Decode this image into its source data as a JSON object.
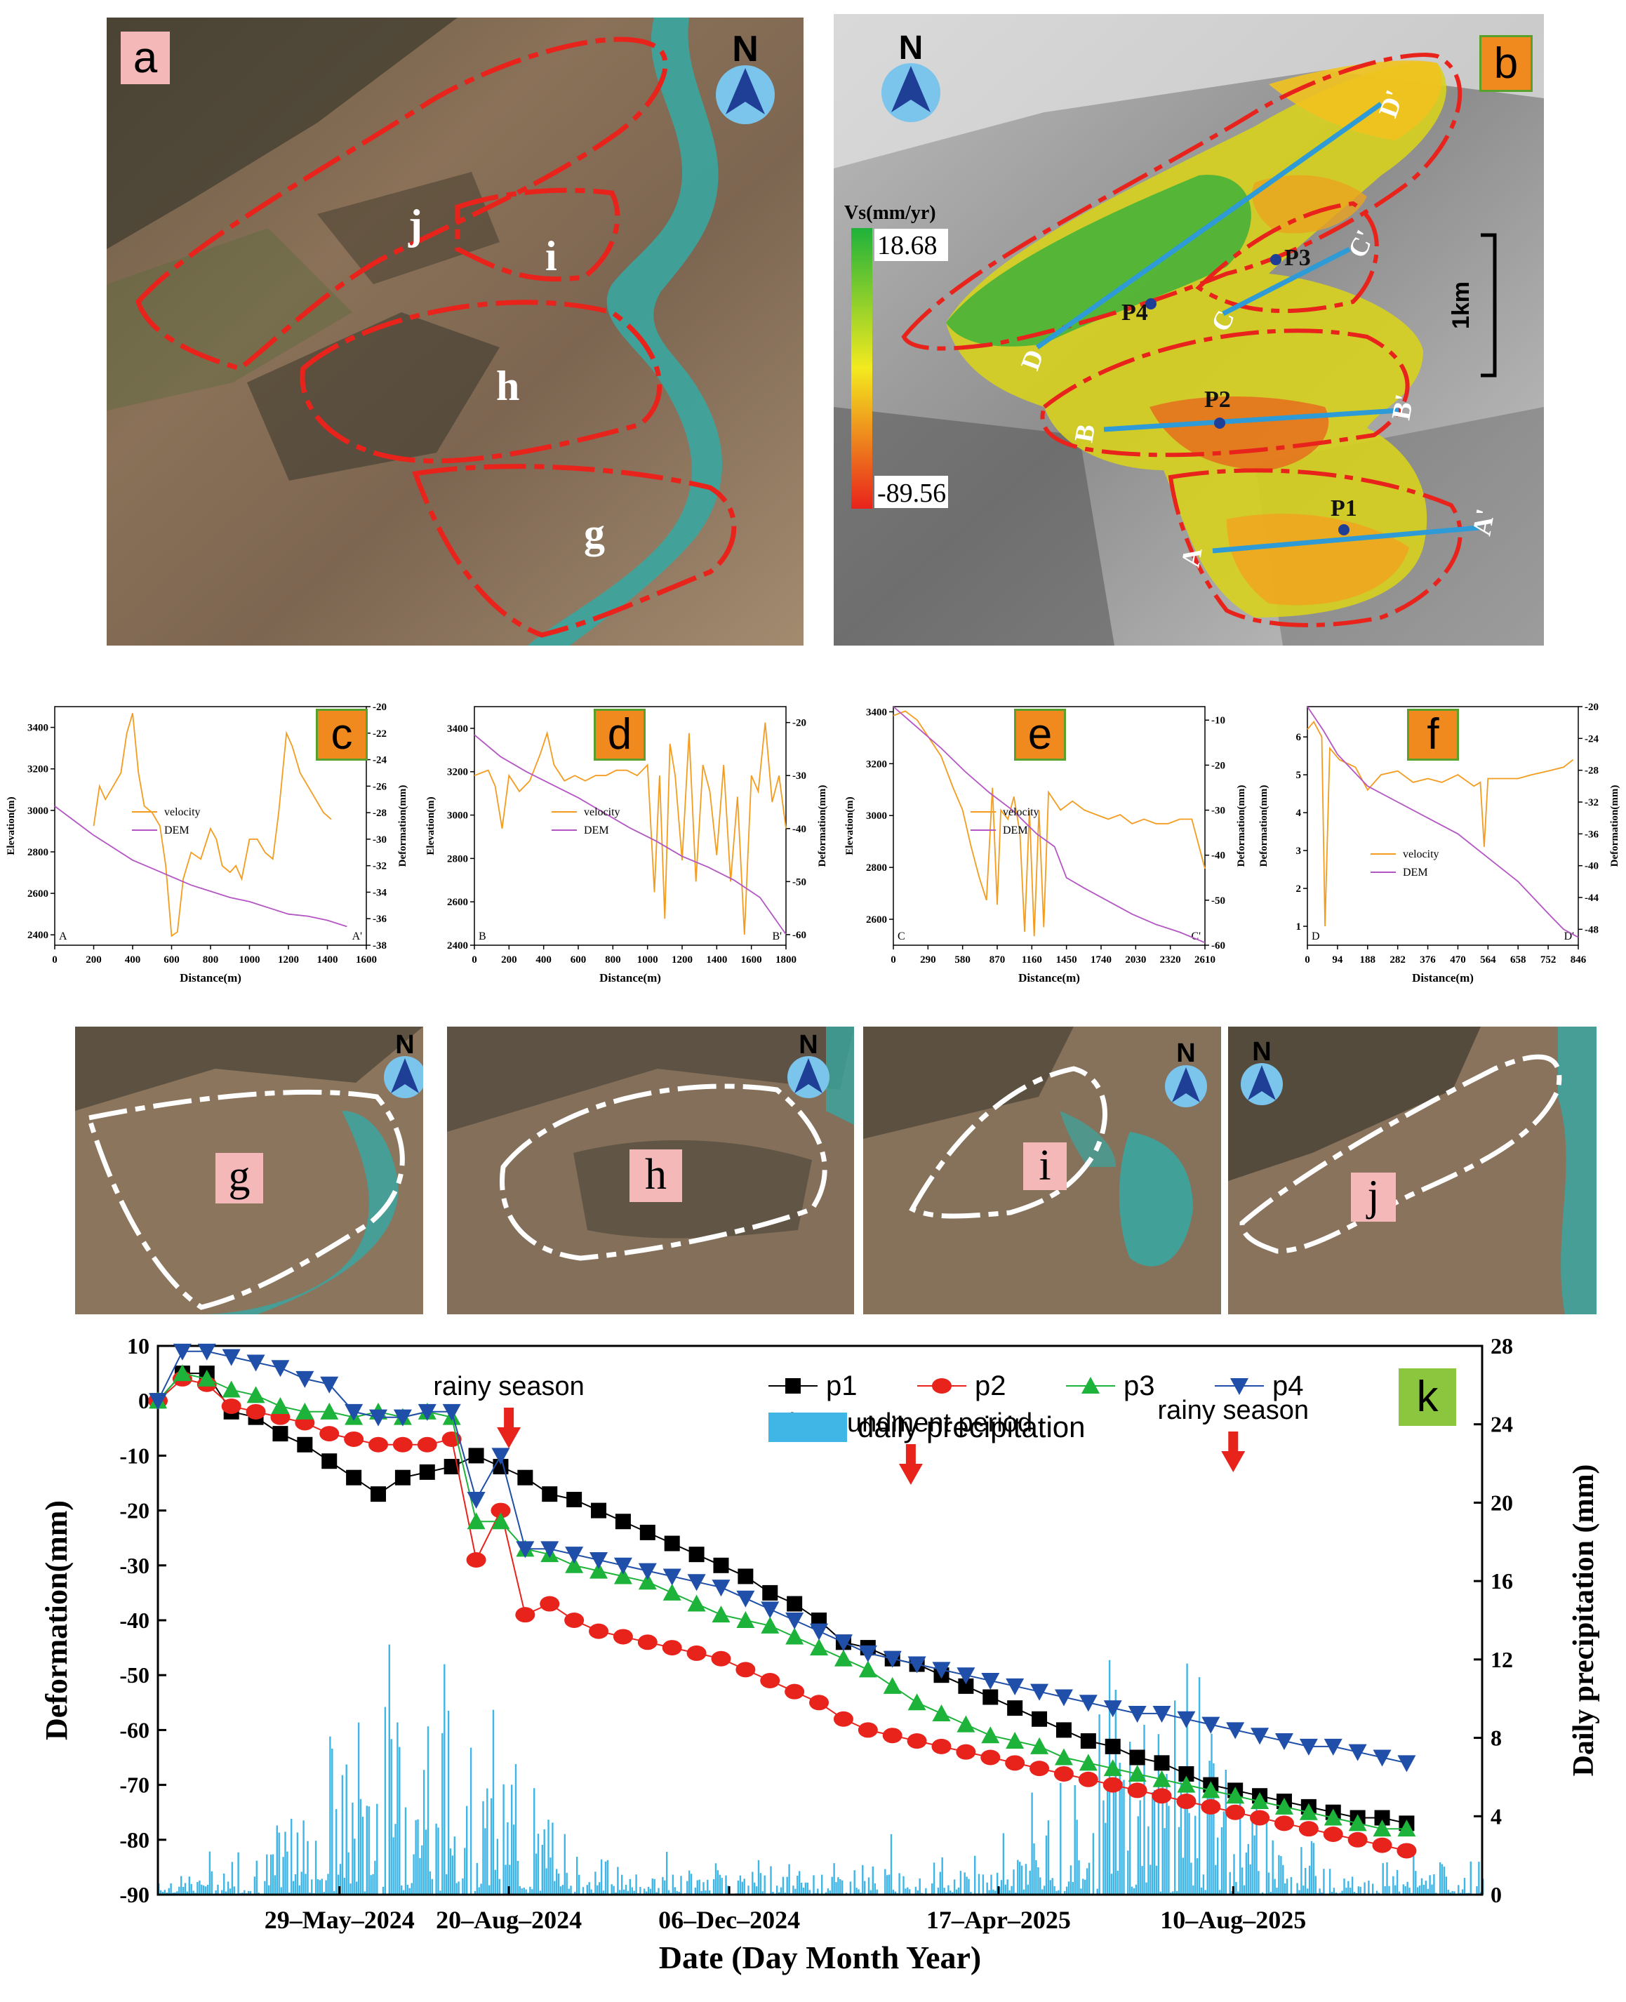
{
  "panels": {
    "a": {
      "label": "a",
      "north": "N",
      "zones": [
        {
          "key": "g",
          "label": "g"
        },
        {
          "key": "h",
          "label": "h"
        },
        {
          "key": "i",
          "label": "i"
        },
        {
          "key": "j",
          "label": "j"
        }
      ]
    },
    "b": {
      "label": "b",
      "north": "N",
      "colorbar": {
        "title": "Vs(mm/yr)",
        "max": "18.68",
        "min": "-89.56"
      },
      "scalebar": "1km",
      "points": [
        {
          "label": "P1"
        },
        {
          "label": "P2"
        },
        {
          "label": "P3"
        },
        {
          "label": "P4"
        }
      ],
      "profiles": [
        {
          "start": "A",
          "end": "A'"
        },
        {
          "start": "B",
          "end": "B'"
        },
        {
          "start": "C",
          "end": "C'"
        },
        {
          "start": "D",
          "end": "D'"
        }
      ],
      "colors": {
        "max": "#1fb23a",
        "mid": "#f3ea1f",
        "min": "#e8231c",
        "profile": "#2e9bd6",
        "outline": "#e8231c"
      }
    },
    "photos": [
      {
        "label": "g",
        "north": "N"
      },
      {
        "label": "h",
        "north": "N"
      },
      {
        "label": "i",
        "north": "N"
      },
      {
        "label": "j",
        "north": "N"
      }
    ]
  },
  "chart_data": [
    {
      "panel": "c",
      "type": "line",
      "xlabel": "Distance(m)",
      "ylabel": "Elevation(m)",
      "y2label": "Deformation(mm)",
      "legend": [
        "velocity",
        "DEM"
      ],
      "start_label": "A",
      "end_label": "A'",
      "xlim": [
        0,
        1600
      ],
      "xticks": [
        0,
        200,
        400,
        600,
        800,
        1000,
        1200,
        1400,
        1600
      ],
      "ylim": [
        2350,
        3500
      ],
      "yticks": [
        2400,
        2600,
        2800,
        3000,
        3200,
        3400
      ],
      "y2lim": [
        -38,
        -20
      ],
      "y2ticks": [
        -38,
        -36,
        -34,
        -32,
        -30,
        -28,
        -26,
        -24,
        -22,
        -20
      ],
      "series": [
        {
          "name": "velocity",
          "axis": "y2",
          "x": [
            200,
            230,
            260,
            300,
            340,
            370,
            400,
            430,
            460,
            500,
            540,
            570,
            600,
            630,
            660,
            700,
            750,
            800,
            830,
            860,
            900,
            930,
            960,
            1000,
            1040,
            1080,
            1120,
            1150,
            1190,
            1220,
            1260,
            1300,
            1340,
            1380,
            1420
          ],
          "y": [
            -29,
            -26,
            -27,
            -26,
            -25,
            -22,
            -20.5,
            -25,
            -27.5,
            -28,
            -29,
            -32,
            -37.3,
            -37,
            -33,
            -31,
            -31.5,
            -29.2,
            -30,
            -32,
            -32.5,
            -32,
            -33,
            -30,
            -30,
            -31,
            -31.5,
            -28,
            -22,
            -23,
            -25,
            -26,
            -27,
            -28,
            -28.5
          ]
        },
        {
          "name": "DEM",
          "axis": "y",
          "x": [
            0,
            100,
            200,
            300,
            400,
            500,
            600,
            700,
            800,
            900,
            1000,
            1100,
            1200,
            1300,
            1400,
            1500
          ],
          "y": [
            3020,
            2950,
            2880,
            2820,
            2760,
            2720,
            2680,
            2640,
            2610,
            2580,
            2560,
            2530,
            2500,
            2490,
            2470,
            2440
          ]
        }
      ]
    },
    {
      "panel": "d",
      "type": "line",
      "xlabel": "Distance(m)",
      "ylabel": "Elevation(m)",
      "y2label": "Deformation(mm)",
      "legend": [
        "velocity",
        "DEM"
      ],
      "start_label": "B",
      "end_label": "B'",
      "xlim": [
        0,
        1800
      ],
      "xticks": [
        0,
        200,
        400,
        600,
        800,
        1000,
        1200,
        1400,
        1600,
        1800
      ],
      "ylim": [
        2400,
        3500
      ],
      "yticks": [
        2400,
        2600,
        2800,
        3000,
        3200,
        3400
      ],
      "y2lim": [
        -62,
        -17
      ],
      "y2ticks": [
        -60,
        -50,
        -40,
        -30,
        -20
      ],
      "series": [
        {
          "name": "velocity",
          "axis": "y2",
          "x": [
            0,
            80,
            120,
            160,
            200,
            260,
            320,
            380,
            420,
            460,
            520,
            580,
            640,
            700,
            760,
            820,
            880,
            940,
            1000,
            1040,
            1070,
            1100,
            1130,
            1160,
            1200,
            1240,
            1280,
            1320,
            1360,
            1400,
            1440,
            1480,
            1520,
            1560,
            1600,
            1640,
            1680,
            1720,
            1760,
            1800
          ],
          "y": [
            -30,
            -29,
            -32,
            -40,
            -30,
            -33,
            -31,
            -26,
            -22,
            -28,
            -31,
            -30,
            -31,
            -30,
            -30,
            -29,
            -29,
            -30,
            -28,
            -52,
            -30,
            -57,
            -24,
            -30,
            -46,
            -22,
            -50,
            -28,
            -33,
            -45,
            -28,
            -50,
            -34,
            -60,
            -30,
            -33,
            -20,
            -35,
            -30,
            -40
          ]
        },
        {
          "name": "DEM",
          "axis": "y",
          "x": [
            0,
            150,
            300,
            450,
            600,
            750,
            900,
            1050,
            1200,
            1350,
            1500,
            1650,
            1800
          ],
          "y": [
            3370,
            3270,
            3200,
            3140,
            3080,
            3010,
            2940,
            2880,
            2810,
            2760,
            2700,
            2620,
            2450
          ]
        }
      ]
    },
    {
      "panel": "e",
      "type": "line",
      "xlabel": "Distance(m)",
      "ylabel": "Elevation(m)",
      "y2label": "Deformation(mm)",
      "legend": [
        "velocity",
        "DEM"
      ],
      "start_label": "C",
      "end_label": "C'",
      "xlim": [
        0,
        2610
      ],
      "xticks": [
        0,
        290,
        580,
        870,
        1160,
        1450,
        1740,
        2030,
        2320,
        2610
      ],
      "ylim": [
        2500,
        3420
      ],
      "yticks": [
        2600,
        2800,
        3000,
        3200,
        3400
      ],
      "y2lim": [
        -60,
        -7
      ],
      "y2ticks": [
        -60,
        -50,
        -40,
        -30,
        -20,
        -10
      ],
      "series": [
        {
          "name": "velocity",
          "axis": "y2",
          "x": [
            0,
            100,
            200,
            300,
            400,
            500,
            580,
            650,
            720,
            780,
            830,
            870,
            900,
            960,
            1010,
            1060,
            1100,
            1140,
            1180,
            1220,
            1260,
            1300,
            1350,
            1400,
            1500,
            1600,
            1700,
            1800,
            1900,
            2000,
            2100,
            2200,
            2300,
            2400,
            2500,
            2610
          ],
          "y": [
            -9,
            -8,
            -10,
            -14,
            -18,
            -25,
            -30,
            -38,
            -45,
            -50,
            -25,
            -51,
            -30,
            -32,
            -27,
            -35,
            -57,
            -30,
            -58,
            -30,
            -56,
            -26,
            -28,
            -30,
            -28,
            -30,
            -31,
            -32,
            -31,
            -33,
            -32,
            -33,
            -33,
            -32,
            -32,
            -43
          ]
        },
        {
          "name": "DEM",
          "axis": "y",
          "x": [
            0,
            200,
            400,
            600,
            800,
            1000,
            1200,
            1350,
            1450,
            1600,
            1800,
            2000,
            2200,
            2400,
            2610
          ],
          "y": [
            3420,
            3340,
            3260,
            3170,
            3090,
            3020,
            2930,
            2880,
            2760,
            2720,
            2670,
            2620,
            2580,
            2550,
            2510
          ]
        }
      ]
    },
    {
      "panel": "f",
      "type": "line",
      "xlabel": "Distance(m)",
      "ylabel": "Deformation(mm)",
      "y2label": "Deformation(mm)",
      "legend": [
        "velocity",
        "DEM"
      ],
      "start_label": "D",
      "end_label": "D'",
      "xlim": [
        0,
        846
      ],
      "xticks": [
        0,
        94,
        188,
        282,
        376,
        470,
        564,
        658,
        752,
        846
      ],
      "ylim": [
        0.5,
        6.8
      ],
      "yticks": [
        1,
        2,
        3,
        4,
        5,
        6
      ],
      "y2lim": [
        -50,
        -20
      ],
      "y2ticks": [
        -48,
        -44,
        -40,
        -36,
        -32,
        -28,
        -24,
        -20
      ],
      "series": [
        {
          "name": "velocity",
          "axis": "y",
          "x": [
            0,
            20,
            45,
            55,
            70,
            100,
            150,
            188,
            230,
            282,
            330,
            376,
            420,
            470,
            520,
            540,
            552,
            564,
            600,
            658,
            700,
            752,
            800,
            830
          ],
          "y": [
            6.2,
            6.4,
            6.0,
            1.0,
            5.7,
            5.4,
            5.2,
            4.6,
            5.0,
            5.1,
            4.8,
            4.9,
            4.8,
            5.0,
            4.7,
            4.8,
            3.1,
            4.9,
            4.9,
            4.9,
            5.0,
            5.1,
            5.2,
            5.4
          ]
        },
        {
          "name": "DEM",
          "axis": "y2",
          "x": [
            0,
            50,
            94,
            188,
            282,
            376,
            470,
            564,
            658,
            752,
            800,
            846
          ],
          "y": [
            -20,
            -23,
            -26,
            -30,
            -32,
            -34,
            -36,
            -39,
            -42,
            -46,
            -48,
            -49
          ]
        }
      ]
    },
    {
      "panel": "k",
      "label": "k",
      "type": "line",
      "xlabel": "Date (Day Month Year)",
      "ylabel": "Deformation(mm)",
      "y2label": "Daily precipitation (mm)",
      "xlim": [
        "2024-03-01",
        "2025-12-10"
      ],
      "xtick_labels": [
        "29–May–2024",
        "20–Aug–2024",
        "06–Dec–2024",
        "17–Apr–2025",
        "10–Aug–2025"
      ],
      "xtick_dates": [
        "2024-05-29",
        "2024-08-20",
        "2024-12-06",
        "2025-04-17",
        "2025-08-10"
      ],
      "ylim": [
        -90,
        10
      ],
      "yticks": [
        -90,
        -80,
        -70,
        -60,
        -50,
        -40,
        -30,
        -20,
        -10,
        0,
        10
      ],
      "y2lim": [
        0,
        28
      ],
      "y2ticks": [
        0,
        4,
        8,
        12,
        16,
        20,
        24,
        28
      ],
      "legend": [
        "p1",
        "p2",
        "p3",
        "p4",
        "daily precipitation"
      ],
      "annotations": [
        {
          "text": "rainy season",
          "date": "2024-08-20"
        },
        {
          "text": "impoundment period",
          "date": "2025-03-05"
        },
        {
          "text": "rainy season",
          "date": "2025-08-10"
        }
      ],
      "colors": {
        "p1": "#000000",
        "p2": "#e8231c",
        "p3": "#1db33a",
        "p4": "#1f4fa8",
        "precip": "#3fb6e6",
        "arrow": "#e8231c"
      },
      "dates": [
        "2024-03-01",
        "2024-03-13",
        "2024-03-25",
        "2024-04-06",
        "2024-04-18",
        "2024-04-30",
        "2024-05-12",
        "2024-05-24",
        "2024-06-05",
        "2024-06-17",
        "2024-06-29",
        "2024-07-11",
        "2024-07-23",
        "2024-08-04",
        "2024-08-16",
        "2024-08-28",
        "2024-09-09",
        "2024-09-21",
        "2024-10-03",
        "2024-10-15",
        "2024-10-27",
        "2024-11-08",
        "2024-11-20",
        "2024-12-02",
        "2024-12-14",
        "2024-12-26",
        "2025-01-07",
        "2025-01-19",
        "2025-01-31",
        "2025-02-12",
        "2025-02-24",
        "2025-03-08",
        "2025-03-20",
        "2025-04-01",
        "2025-04-13",
        "2025-04-25",
        "2025-05-07",
        "2025-05-19",
        "2025-05-31",
        "2025-06-12",
        "2025-06-24",
        "2025-07-06",
        "2025-07-18",
        "2025-07-30",
        "2025-08-11",
        "2025-08-23",
        "2025-09-04",
        "2025-09-16",
        "2025-09-28",
        "2025-10-10",
        "2025-10-22",
        "2025-11-03"
      ],
      "series": [
        {
          "name": "p1",
          "values": [
            0,
            5,
            5,
            -2,
            -3,
            -6,
            -8,
            -11,
            -14,
            -17,
            -14,
            -13,
            -12,
            -10,
            -12,
            -14,
            -17,
            -18,
            -20,
            -22,
            -24,
            -26,
            -28,
            -30,
            -32,
            -35,
            -37,
            -40,
            -44,
            -45,
            -47,
            -48,
            -50,
            -52,
            -54,
            -56,
            -58,
            -60,
            -62,
            -63,
            -65,
            -66,
            -68,
            -70,
            -71,
            -72,
            -73,
            -74,
            -75,
            -76,
            -76,
            -77
          ]
        },
        {
          "name": "p2",
          "values": [
            0,
            4,
            3,
            -1,
            -2,
            -3,
            -4,
            -6,
            -7,
            -8,
            -8,
            -8,
            -7,
            -29,
            -20,
            -39,
            -37,
            -40,
            -42,
            -43,
            -44,
            -45,
            -46,
            -47,
            -49,
            -51,
            -53,
            -55,
            -58,
            -60,
            -61,
            -62,
            -63,
            -64,
            -65,
            -66,
            -67,
            -68,
            -69,
            -70,
            -71,
            -72,
            -73,
            -74,
            -75,
            -76,
            -77,
            -78,
            -79,
            -80,
            -81,
            -82
          ]
        },
        {
          "name": "p3",
          "values": [
            0,
            5,
            4,
            2,
            1,
            -1,
            -2,
            -2,
            -3,
            -2,
            -3,
            -2,
            -3,
            -22,
            -22,
            -27,
            -28,
            -30,
            -31,
            -32,
            -33,
            -35,
            -37,
            -39,
            -40,
            -41,
            -43,
            -45,
            -47,
            -49,
            -52,
            -55,
            -57,
            -59,
            -61,
            -62,
            -63,
            -65,
            -66,
            -67,
            -68,
            -69,
            -70,
            -71,
            -72,
            -73,
            -74,
            -75,
            -76,
            -77,
            -78,
            -78
          ]
        },
        {
          "name": "p4",
          "values": [
            0,
            9,
            9,
            8,
            7,
            6,
            4,
            3,
            -2,
            -3,
            -3,
            -2,
            -2,
            -18,
            -10,
            -27,
            -27,
            -28,
            -29,
            -30,
            -31,
            -32,
            -33,
            -34,
            -36,
            -38,
            -40,
            -42,
            -44,
            -46,
            -47,
            -48,
            -49,
            -50,
            -51,
            -52,
            -53,
            -54,
            -55,
            -56,
            -57,
            -57,
            -58,
            -59,
            -60,
            -61,
            -62,
            -63,
            -63,
            -64,
            -65,
            -66
          ]
        }
      ]
    }
  ]
}
